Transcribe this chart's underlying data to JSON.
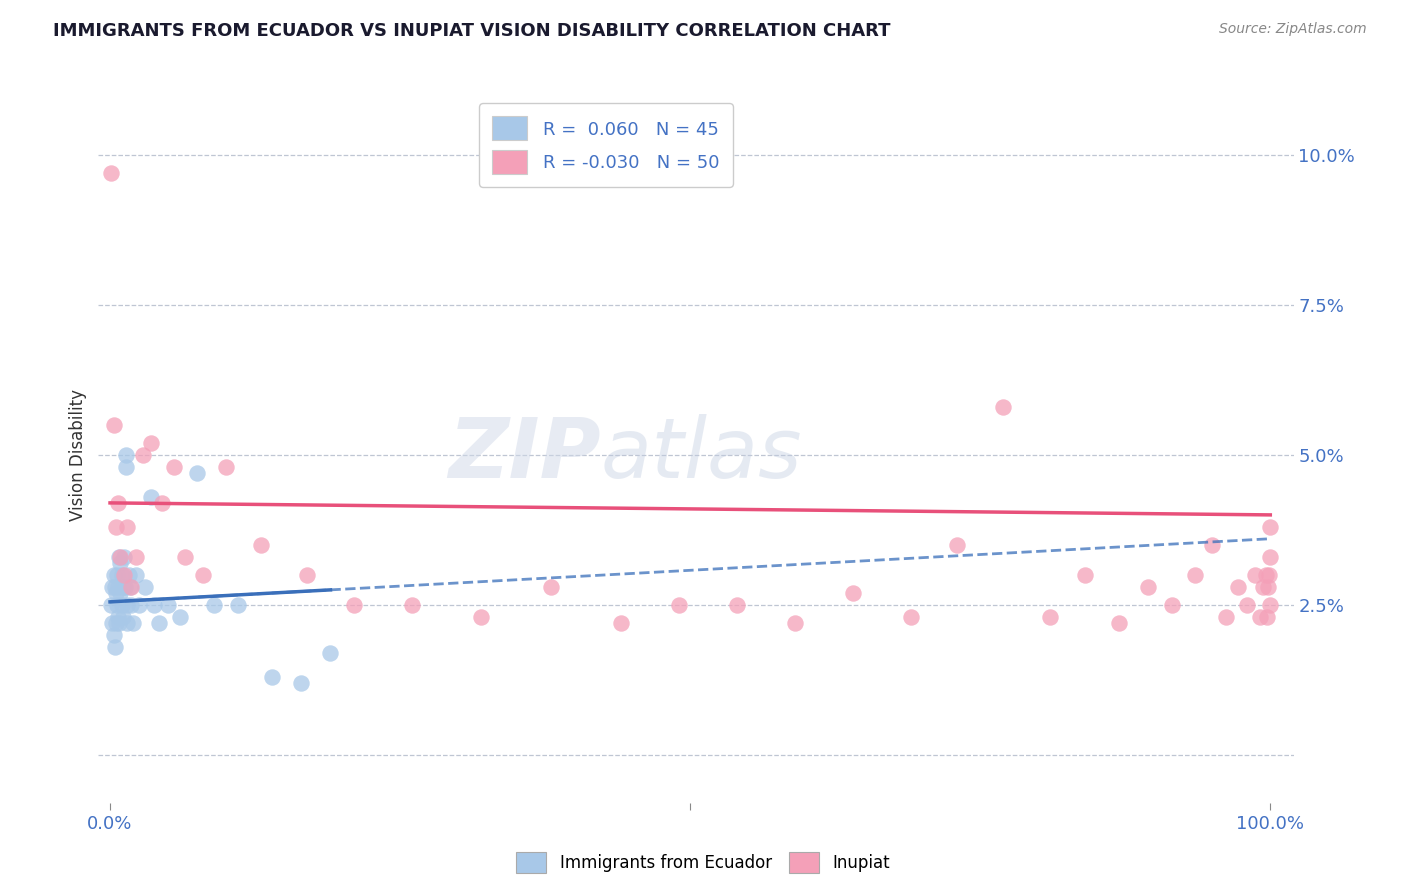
{
  "title": "IMMIGRANTS FROM ECUADOR VS INUPIAT VISION DISABILITY CORRELATION CHART",
  "source": "Source: ZipAtlas.com",
  "ylabel": "Vision Disability",
  "blue_color": "#a8c8e8",
  "pink_color": "#f4a0b8",
  "blue_line_color": "#3a6fba",
  "pink_line_color": "#e8507a",
  "background_color": "#ffffff",
  "blue_points_x": [
    0.001,
    0.002,
    0.002,
    0.003,
    0.003,
    0.004,
    0.004,
    0.005,
    0.005,
    0.006,
    0.006,
    0.007,
    0.007,
    0.008,
    0.008,
    0.009,
    0.009,
    0.01,
    0.01,
    0.011,
    0.011,
    0.012,
    0.013,
    0.014,
    0.014,
    0.015,
    0.015,
    0.016,
    0.017,
    0.018,
    0.02,
    0.022,
    0.025,
    0.03,
    0.035,
    0.038,
    0.042,
    0.05,
    0.06,
    0.075,
    0.09,
    0.11,
    0.14,
    0.165,
    0.19
  ],
  "blue_points_y": [
    0.025,
    0.028,
    0.022,
    0.03,
    0.02,
    0.028,
    0.018,
    0.027,
    0.022,
    0.025,
    0.03,
    0.023,
    0.028,
    0.033,
    0.022,
    0.027,
    0.032,
    0.025,
    0.03,
    0.028,
    0.023,
    0.033,
    0.028,
    0.05,
    0.048,
    0.025,
    0.022,
    0.03,
    0.028,
    0.025,
    0.022,
    0.03,
    0.025,
    0.028,
    0.043,
    0.025,
    0.022,
    0.025,
    0.023,
    0.047,
    0.025,
    0.025,
    0.013,
    0.012,
    0.017
  ],
  "pink_points_x": [
    0.001,
    0.003,
    0.005,
    0.007,
    0.009,
    0.012,
    0.015,
    0.018,
    0.022,
    0.028,
    0.035,
    0.045,
    0.055,
    0.065,
    0.08,
    0.1,
    0.13,
    0.17,
    0.21,
    0.26,
    0.32,
    0.38,
    0.44,
    0.49,
    0.54,
    0.59,
    0.64,
    0.69,
    0.73,
    0.77,
    0.81,
    0.84,
    0.87,
    0.895,
    0.915,
    0.935,
    0.95,
    0.962,
    0.972,
    0.98,
    0.987,
    0.991,
    0.994,
    0.996,
    0.997,
    0.998,
    0.999,
    0.9993,
    0.9996,
    0.9998
  ],
  "pink_points_y": [
    0.097,
    0.055,
    0.038,
    0.042,
    0.033,
    0.03,
    0.038,
    0.028,
    0.033,
    0.05,
    0.052,
    0.042,
    0.048,
    0.033,
    0.03,
    0.048,
    0.035,
    0.03,
    0.025,
    0.025,
    0.023,
    0.028,
    0.022,
    0.025,
    0.025,
    0.022,
    0.027,
    0.023,
    0.035,
    0.058,
    0.023,
    0.03,
    0.022,
    0.028,
    0.025,
    0.03,
    0.035,
    0.023,
    0.028,
    0.025,
    0.03,
    0.023,
    0.028,
    0.03,
    0.023,
    0.028,
    0.03,
    0.033,
    0.025,
    0.038
  ],
  "blue_r": 0.06,
  "blue_n": 45,
  "pink_r": -0.03,
  "pink_n": 50,
  "pink_line_y_start": 0.042,
  "pink_line_y_end": 0.04,
  "blue_line_y_intercept": 0.0258,
  "blue_line_slope_factor": 0.0002,
  "xlim": [
    -0.01,
    1.02
  ],
  "ylim": [
    -0.008,
    0.108
  ]
}
